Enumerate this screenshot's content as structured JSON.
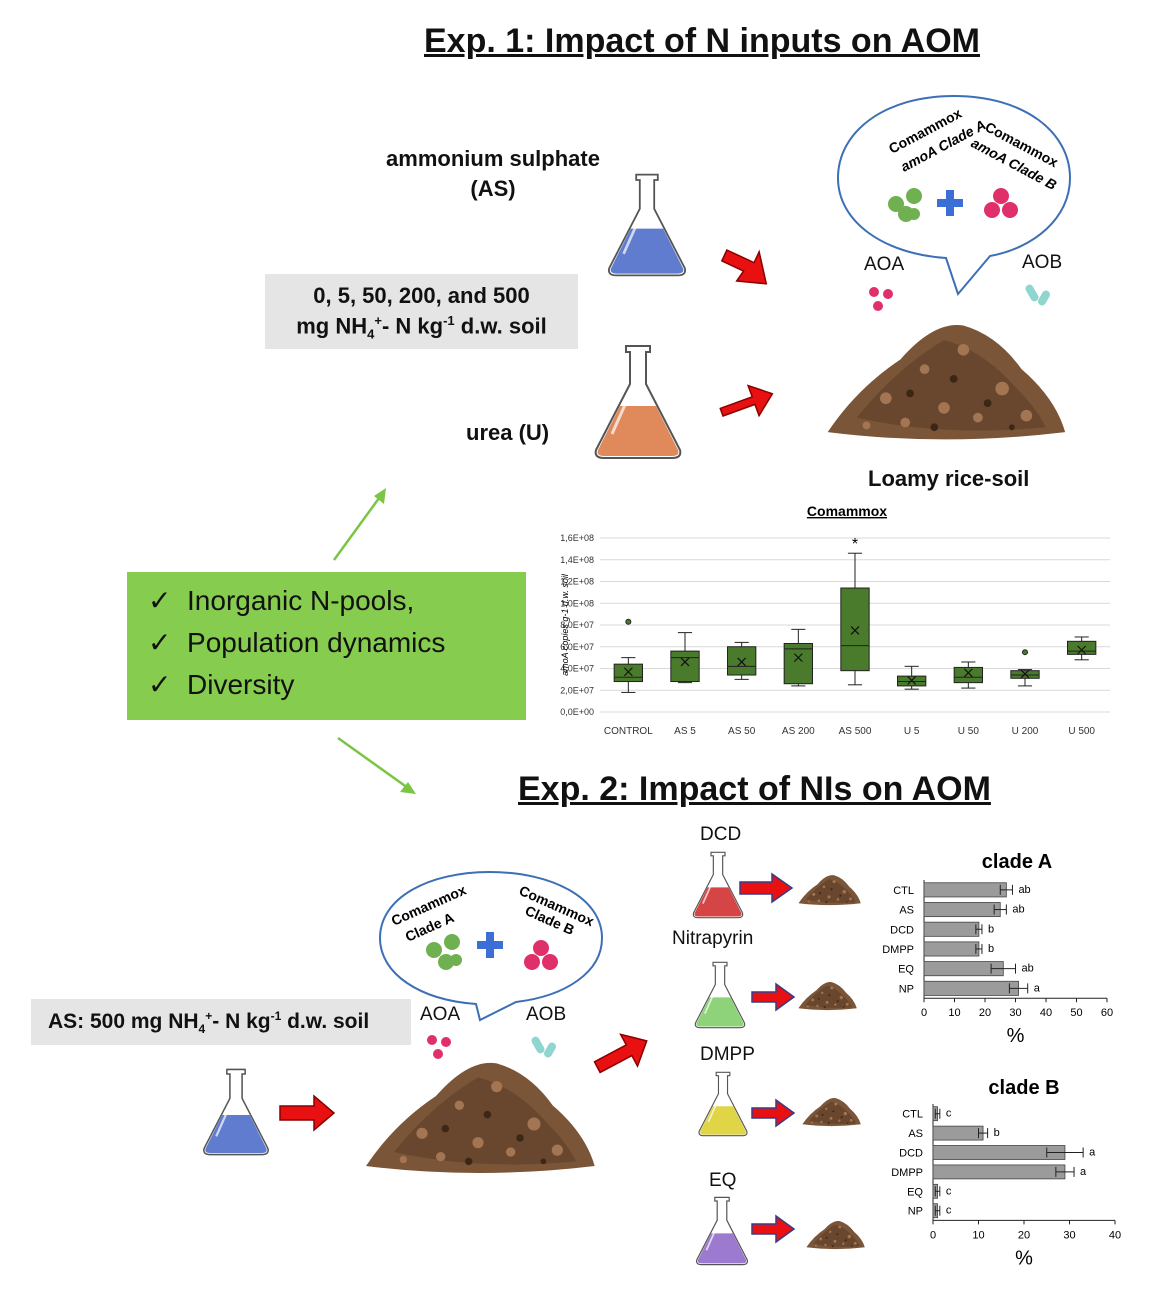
{
  "exp1": {
    "title": "Exp. 1: Impact of N inputs on AOM",
    "as_label_line1": "ammonium sulphate",
    "as_label_line2": "(AS)",
    "urea_label": "urea (U)",
    "doses_line1": "0, 5, 50, 200, and 500",
    "doses_line2_prefix": "mg NH",
    "doses_sub": "4",
    "doses_sup": "+",
    "doses_line2_mid": "- N kg",
    "doses_sup2": "-1",
    "doses_line2_suffix": " d.w. soil",
    "bubble_clade_a": [
      "Comammox",
      "amoA Clade A"
    ],
    "bubble_clade_b": [
      "Comammox",
      "amoA Clade B"
    ],
    "aoa_label": "AOA",
    "aob_label": "AOB",
    "soil_label": "Loamy rice-soil"
  },
  "checklist": {
    "items": [
      "Inorganic N-pools,",
      "Population dynamics",
      "Diversity"
    ],
    "check_symbol": "✓"
  },
  "exp2": {
    "title": "Exp. 2: Impact of NIs on AOM",
    "as_dose_prefix": "AS: 500 mg NH",
    "as_dose_sub": "4",
    "as_dose_sup": "+",
    "as_dose_mid": "- N kg",
    "as_dose_sup2": "-1",
    "as_dose_suffix": " d.w. soil",
    "bubble_clade_a": [
      "Comammox",
      "Clade A"
    ],
    "bubble_clade_b": [
      "Comammox",
      "Clade B"
    ],
    "aoa_label": "AOA",
    "aob_label": "AOB",
    "inhibitors": [
      "DCD",
      "Nitrapyrin",
      "DMPP",
      "EQ"
    ]
  },
  "colors": {
    "green_box": "#86cc4e",
    "gray_box": "#e5e5e5",
    "box_fill": "#4a7a2c",
    "bar_fill": "#9b9b9b",
    "arrow_red": "#e81010",
    "arrow_green": "#7cc443",
    "flask_blue": "#5f7ccf",
    "flask_orange": "#e08a5c",
    "flask_red": "#d64545",
    "flask_green": "#8ed27a",
    "flask_yellow": "#e0d447",
    "flask_purple": "#9b7ad0",
    "soil": "#7a5538",
    "dot_green": "#6fb050",
    "dot_pink": "#e0306a",
    "bubble_stroke": "#3c6fb6",
    "plus_blue": "#3c6fd6"
  },
  "icons": [
    "erlenmeyer-flask-icon",
    "soil-pile-icon",
    "microbe-icon",
    "red-arrow-icon",
    "green-arrow-icon",
    "speech-bubble-icon",
    "checkmark-icon",
    "plus-icon"
  ],
  "chart_data": [
    {
      "type": "box",
      "title": "Comammox",
      "ylabel": "amoA copies g-1 d.w. soil",
      "categories": [
        "CONTROL",
        "AS 5",
        "AS 50",
        "AS 200",
        "AS 500",
        "U 5",
        "U 50",
        "U 200",
        "U 500"
      ],
      "yticks": [
        "0,0E+00",
        "2,0E+07",
        "4,0E+07",
        "6,0E+07",
        "8,0E+07",
        "1,0E+08",
        "1,2E+08",
        "1,4E+08",
        "1,6E+08"
      ],
      "ylim": [
        0,
        160000000
      ],
      "boxes": [
        {
          "min": 18000000,
          "q1": 28000000,
          "median": 32000000,
          "q3": 44000000,
          "max": 50000000,
          "mean": 37000000,
          "outliers": [
            83000000
          ]
        },
        {
          "min": 27000000,
          "q1": 28000000,
          "median": 50000000,
          "q3": 56000000,
          "max": 73000000,
          "mean": 46000000,
          "outliers": []
        },
        {
          "min": 30000000,
          "q1": 34000000,
          "median": 42000000,
          "q3": 60000000,
          "max": 64000000,
          "mean": 46000000,
          "outliers": []
        },
        {
          "min": 24000000,
          "q1": 26000000,
          "median": 58000000,
          "q3": 63000000,
          "max": 76000000,
          "mean": 50000000,
          "outliers": []
        },
        {
          "min": 25000000,
          "q1": 38000000,
          "median": 61000000,
          "q3": 114000000,
          "max": 146000000,
          "mean": 75000000,
          "outliers": []
        },
        {
          "min": 21000000,
          "q1": 24000000,
          "median": 28000000,
          "q3": 33000000,
          "max": 42000000,
          "mean": 29000000,
          "outliers": []
        },
        {
          "min": 22000000,
          "q1": 27000000,
          "median": 32000000,
          "q3": 41000000,
          "max": 46000000,
          "mean": 36000000,
          "outliers": []
        },
        {
          "min": 24000000,
          "q1": 31000000,
          "median": 34000000,
          "q3": 38000000,
          "max": 39000000,
          "mean": 35000000,
          "outliers": [
            55000000
          ]
        },
        {
          "min": 48000000,
          "q1": 53000000,
          "median": 56000000,
          "q3": 65000000,
          "max": 69000000,
          "mean": 57000000,
          "outliers": []
        }
      ],
      "annotations": [
        {
          "category": "AS 500",
          "text": "*"
        }
      ]
    },
    {
      "type": "bar",
      "orientation": "horizontal",
      "title": "clade A",
      "xlabel": "%",
      "categories": [
        "CTL",
        "AS",
        "DCD",
        "DMPP",
        "EQ",
        "NP"
      ],
      "values": [
        27,
        25,
        18,
        18,
        26,
        31
      ],
      "errors": [
        2,
        2,
        1,
        1,
        4,
        3
      ],
      "letters": [
        "ab",
        "ab",
        "b",
        "b",
        "ab",
        "a"
      ],
      "xlim": [
        0,
        60
      ],
      "xticks": [
        0,
        10,
        20,
        30,
        40,
        50,
        60
      ]
    },
    {
      "type": "bar",
      "orientation": "horizontal",
      "title": "clade B",
      "xlabel": "%",
      "categories": [
        "CTL",
        "AS",
        "DCD",
        "DMPP",
        "EQ",
        "NP"
      ],
      "values": [
        1,
        11,
        29,
        29,
        1,
        1
      ],
      "errors": [
        0.5,
        1,
        4,
        2,
        0.5,
        0.5
      ],
      "letters": [
        "c",
        "b",
        "a",
        "a",
        "c",
        "c"
      ],
      "xlim": [
        0,
        40
      ],
      "xticks": [
        0,
        10,
        20,
        30,
        40
      ]
    }
  ]
}
